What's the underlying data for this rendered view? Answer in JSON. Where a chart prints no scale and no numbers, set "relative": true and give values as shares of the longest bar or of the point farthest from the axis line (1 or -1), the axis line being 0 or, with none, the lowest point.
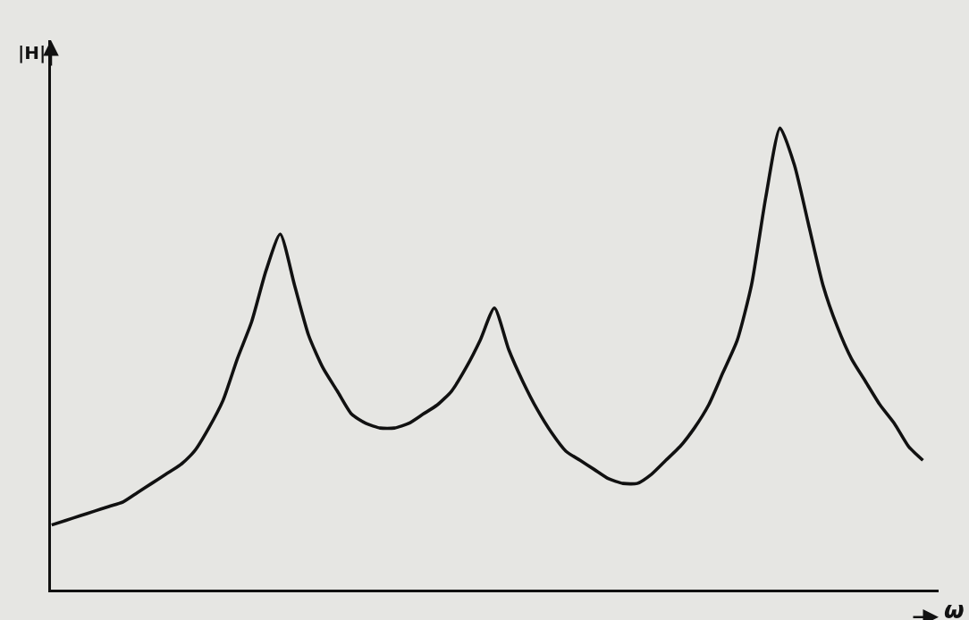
{
  "chart_data": {
    "type": "line",
    "relative": true,
    "xlabel": "ω",
    "ylabel": "|H|",
    "categories": [
      null,
      null,
      null,
      null,
      null,
      null,
      null,
      null,
      null,
      null,
      null,
      null,
      null,
      null,
      null,
      null,
      null,
      null,
      null,
      null,
      null,
      null,
      null,
      null,
      null,
      null,
      null,
      null,
      null,
      null,
      null,
      null,
      null,
      null,
      null,
      null,
      null,
      null,
      null,
      null,
      null,
      null,
      null,
      null,
      null,
      null,
      null,
      null,
      null,
      null,
      null,
      null,
      null,
      null,
      null,
      null,
      null,
      null,
      null,
      null,
      null,
      null
    ],
    "series": [
      {
        "color": "#111111",
        "values": [
          0.14,
          0.15,
          0.16,
          0.17,
          0.18,
          0.19,
          0.21,
          0.23,
          0.25,
          0.27,
          0.3,
          0.35,
          0.41,
          0.5,
          0.58,
          0.69,
          0.77,
          0.66,
          0.55,
          0.48,
          0.43,
          0.38,
          0.36,
          0.35,
          0.35,
          0.36,
          0.38,
          0.4,
          0.43,
          0.48,
          0.54,
          0.61,
          0.52,
          0.45,
          0.39,
          0.34,
          0.3,
          0.28,
          0.26,
          0.24,
          0.23,
          0.23,
          0.25,
          0.28,
          0.31,
          0.35,
          0.4,
          0.47,
          0.54,
          0.66,
          0.85,
          1,
          0.92,
          0.79,
          0.66,
          0.57,
          0.5,
          0.45,
          0.4,
          0.36,
          0.31,
          0.28
        ]
      }
    ],
    "grid": false,
    "marker": "none",
    "line_style": "solid"
  }
}
